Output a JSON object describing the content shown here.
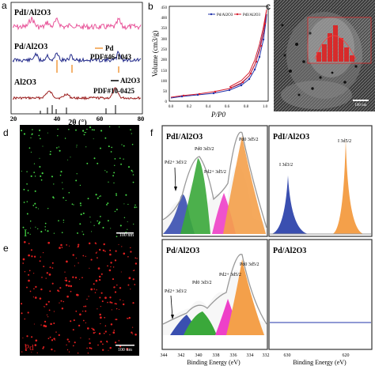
{
  "panel_labels": {
    "a": "a",
    "b": "b",
    "c": "c",
    "d": "d",
    "e": "e",
    "f": "f"
  },
  "panel_a": {
    "trace_labels": [
      "PdI/Al2O3",
      "Pd/Al2O3",
      "Al2O3"
    ],
    "ref_pd_name": "Pd",
    "ref_pd_pdf": "PDF#46-1043",
    "ref_al_name": "Al2O3",
    "ref_al_pdf": "PDF#10-0425",
    "xlabel": "2θ (°)",
    "xticks": [
      "20",
      "40",
      "60",
      "80"
    ],
    "colors": {
      "pdi": "#e8559a",
      "pd": "#222a8a",
      "al": "#9a1c1c",
      "ref_pd": "#f09a40",
      "ref_al": "#000000"
    }
  },
  "panel_b": {
    "legend": [
      "Pd/Al2O3",
      "PdI/Al2O3"
    ],
    "xlabel": "P/P0",
    "ylabel": "Volume (cm3/g)",
    "xticks": [
      "0.0",
      "0.2",
      "0.4",
      "0.6",
      "0.8",
      "1.0"
    ],
    "yticks": [
      "0",
      "50",
      "100",
      "150",
      "200",
      "250",
      "300",
      "350",
      "400",
      "450"
    ],
    "colors": {
      "pd": "#2233aa",
      "pdi": "#d62030"
    }
  },
  "panel_c": {
    "scalebar": "100 nm"
  },
  "panel_d": {
    "element": "I",
    "scalebar": "100 nm"
  },
  "panel_e": {
    "element": "Pd",
    "scalebar": "100 nm"
  },
  "panel_f": {
    "titles": [
      "PdI/Al2O3",
      "PdI/Al2O3",
      "Pd/Al2O3",
      "Pd/Al2O3"
    ],
    "peaks_pdi_pd": [
      "Pd2+ 3d3/2",
      "Pd0 3d3/2",
      "Pd2+ 3d5/2",
      "Pd0 3d5/2"
    ],
    "peaks_pdi_i": [
      "I 3d3/2",
      "I 3d5/2"
    ],
    "peaks_pd_pd": [
      "Pd2+ 3d3/2",
      "Pd0 3d3/2",
      "Pd2+ 3d5/2",
      "Pd0 3d5/2"
    ],
    "xlabel_left": "Binding Energy (eV)",
    "xlabel_right": "Binding Energy (eV)",
    "xticks_left": [
      "344",
      "342",
      "340",
      "338",
      "336",
      "334",
      "332"
    ],
    "xticks_right": [
      "630",
      "620"
    ],
    "colors": {
      "blue": "#3a4fb0",
      "green": "#3aa83a",
      "pink": "#ee40c8",
      "orange": "#f4a04a",
      "envelope": "#999999",
      "frame": "#333333"
    }
  }
}
